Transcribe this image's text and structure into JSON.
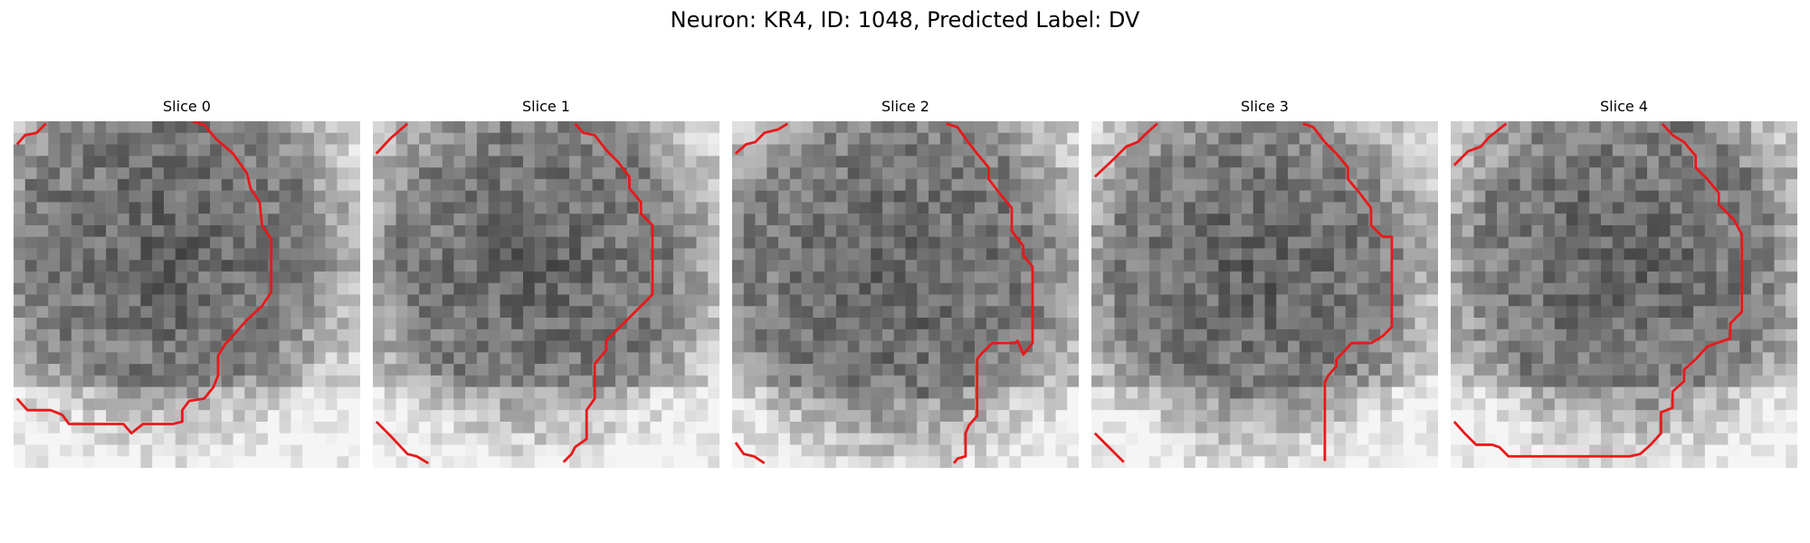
{
  "figure": {
    "title": "Neuron: KR4, ID: 1048, Predicted Label: DV"
  },
  "colors": {
    "contour": "#e8191b",
    "background": "#ffffff"
  },
  "slices": [
    {
      "title": "Slice 0"
    },
    {
      "title": "Slice 1"
    },
    {
      "title": "Slice 2"
    },
    {
      "title": "Slice 3"
    },
    {
      "title": "Slice 4"
    }
  ]
}
